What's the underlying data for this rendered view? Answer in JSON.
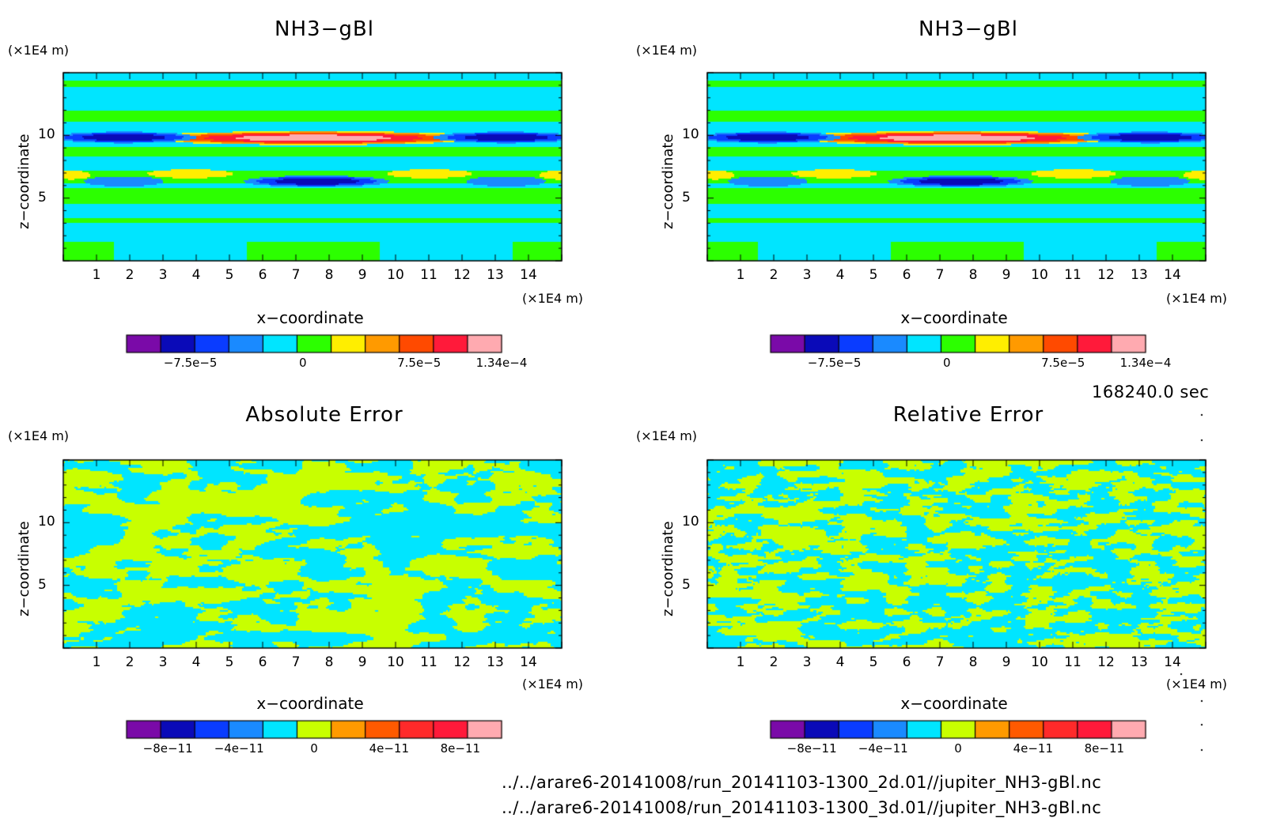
{
  "footer": {
    "time": "168240.0 sec",
    "file_1": "../../arare6-20141008/run_20141103-1300_2d.01//jupiter_NH3-gBl.nc",
    "file_2": "../../arare6-20141008/run_20141103-1300_3d.01//jupiter_NH3-gBl.nc"
  },
  "colors": {
    "field": [
      "#7a0aa8",
      "#0a0ab8",
      "#0a3cff",
      "#1a8aff",
      "#00e5ff",
      "#2cff00",
      "#ffee00",
      "#ff9a00",
      "#ff4a00",
      "#ff1a3a",
      "#ffaab0"
    ],
    "error": [
      "#7a0aa8",
      "#0a0ab8",
      "#0a3cff",
      "#1a8aff",
      "#00e5ff",
      "#c8ff00",
      "#ff9a00",
      "#ff5a00",
      "#ff2a2a",
      "#ff1a3a",
      "#ffaab0"
    ]
  },
  "chart_data": [
    {
      "type": "heatmap",
      "title": "NH3−gBl",
      "xlabel": "x−coordinate",
      "ylabel": "z−coordinate",
      "x_unit": "(×1E4 m)",
      "y_unit": "(×1E4 m)",
      "xlim": [
        0,
        15
      ],
      "ylim": [
        0,
        15
      ],
      "x_ticks": [
        "1",
        "2",
        "3",
        "4",
        "5",
        "6",
        "7",
        "8",
        "9",
        "10",
        "11",
        "12",
        "13",
        "14"
      ],
      "y_ticks": [
        "5",
        "10"
      ],
      "colorbar": {
        "ticks": [
          "−7.5e−5",
          "0",
          "7.5e−5",
          "1.34e−4"
        ],
        "min": -0.000134,
        "max": 0.000134
      },
      "field": "nh3"
    },
    {
      "type": "heatmap",
      "title": "NH3−gBl",
      "xlabel": "x−coordinate",
      "ylabel": "z−coordinate",
      "x_unit": "(×1E4 m)",
      "y_unit": "(×1E4 m)",
      "xlim": [
        0,
        15
      ],
      "ylim": [
        0,
        15
      ],
      "x_ticks": [
        "1",
        "2",
        "3",
        "4",
        "5",
        "6",
        "7",
        "8",
        "9",
        "10",
        "11",
        "12",
        "13",
        "14"
      ],
      "y_ticks": [
        "5",
        "10"
      ],
      "colorbar": {
        "ticks": [
          "−7.5e−5",
          "0",
          "7.5e−5",
          "1.34e−4"
        ],
        "min": -0.000134,
        "max": 0.000134
      },
      "field": "nh3"
    },
    {
      "type": "heatmap",
      "title": "Absolute Error",
      "xlabel": "x−coordinate",
      "ylabel": "z−coordinate",
      "x_unit": "(×1E4 m)",
      "y_unit": "(×1E4 m)",
      "xlim": [
        0,
        15
      ],
      "ylim": [
        0,
        15
      ],
      "x_ticks": [
        "1",
        "2",
        "3",
        "4",
        "5",
        "6",
        "7",
        "8",
        "9",
        "10",
        "11",
        "12",
        "13",
        "14"
      ],
      "y_ticks": [
        "5",
        "10"
      ],
      "colorbar": {
        "ticks": [
          "−8e−11",
          "−4e−11",
          "0",
          "4e−11",
          "8e−11"
        ],
        "min": -1e-10,
        "max": 1e-10
      },
      "field": "noise_coarse",
      "values_present": [
        -1e-11,
        1e-11
      ]
    },
    {
      "type": "heatmap",
      "title": "Relative Error",
      "xlabel": "x−coordinate",
      "ylabel": "z−coordinate",
      "x_unit": "(×1E4 m)",
      "y_unit": "(×1E4 m)",
      "xlim": [
        0,
        15
      ],
      "ylim": [
        0,
        15
      ],
      "x_ticks": [
        "1",
        "2",
        "3",
        "4",
        "5",
        "6",
        "7",
        "8",
        "9",
        "10",
        "11",
        "12",
        "13",
        "14"
      ],
      "y_ticks": [
        "5",
        "10"
      ],
      "colorbar": {
        "ticks": [
          "−8e−11",
          "−4e−11",
          "0",
          "4e−11",
          "8e−11"
        ],
        "min": -1e-10,
        "max": 1e-10
      },
      "field": "noise_fine",
      "values_present": [
        -1e-11,
        1e-11
      ]
    }
  ]
}
